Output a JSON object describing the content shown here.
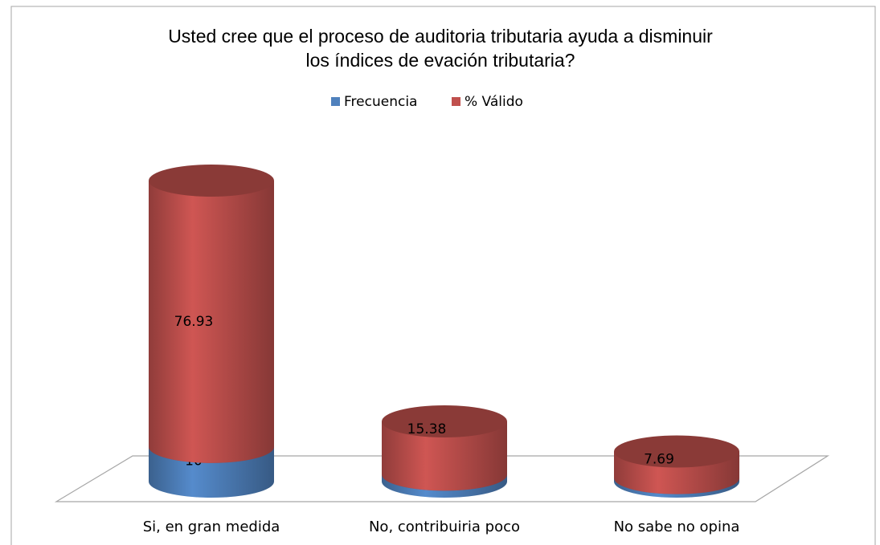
{
  "chart_data": {
    "type": "bar3d_stacked",
    "title": "Usted cree que el proceso de auditoria tributaria ayuda a disminuir los índices de evación tributaria?",
    "categories": [
      "Si, en gran medida",
      "No, contribuiria poco",
      "No sabe no opina"
    ],
    "series": [
      {
        "name": "Frecuencia",
        "color": "#4f81bd",
        "values": [
          10,
          2,
          1
        ]
      },
      {
        "name": "% Válido",
        "color": "#c0504d",
        "values": [
          76.93,
          15.38,
          7.69
        ]
      }
    ],
    "legend": "top"
  }
}
